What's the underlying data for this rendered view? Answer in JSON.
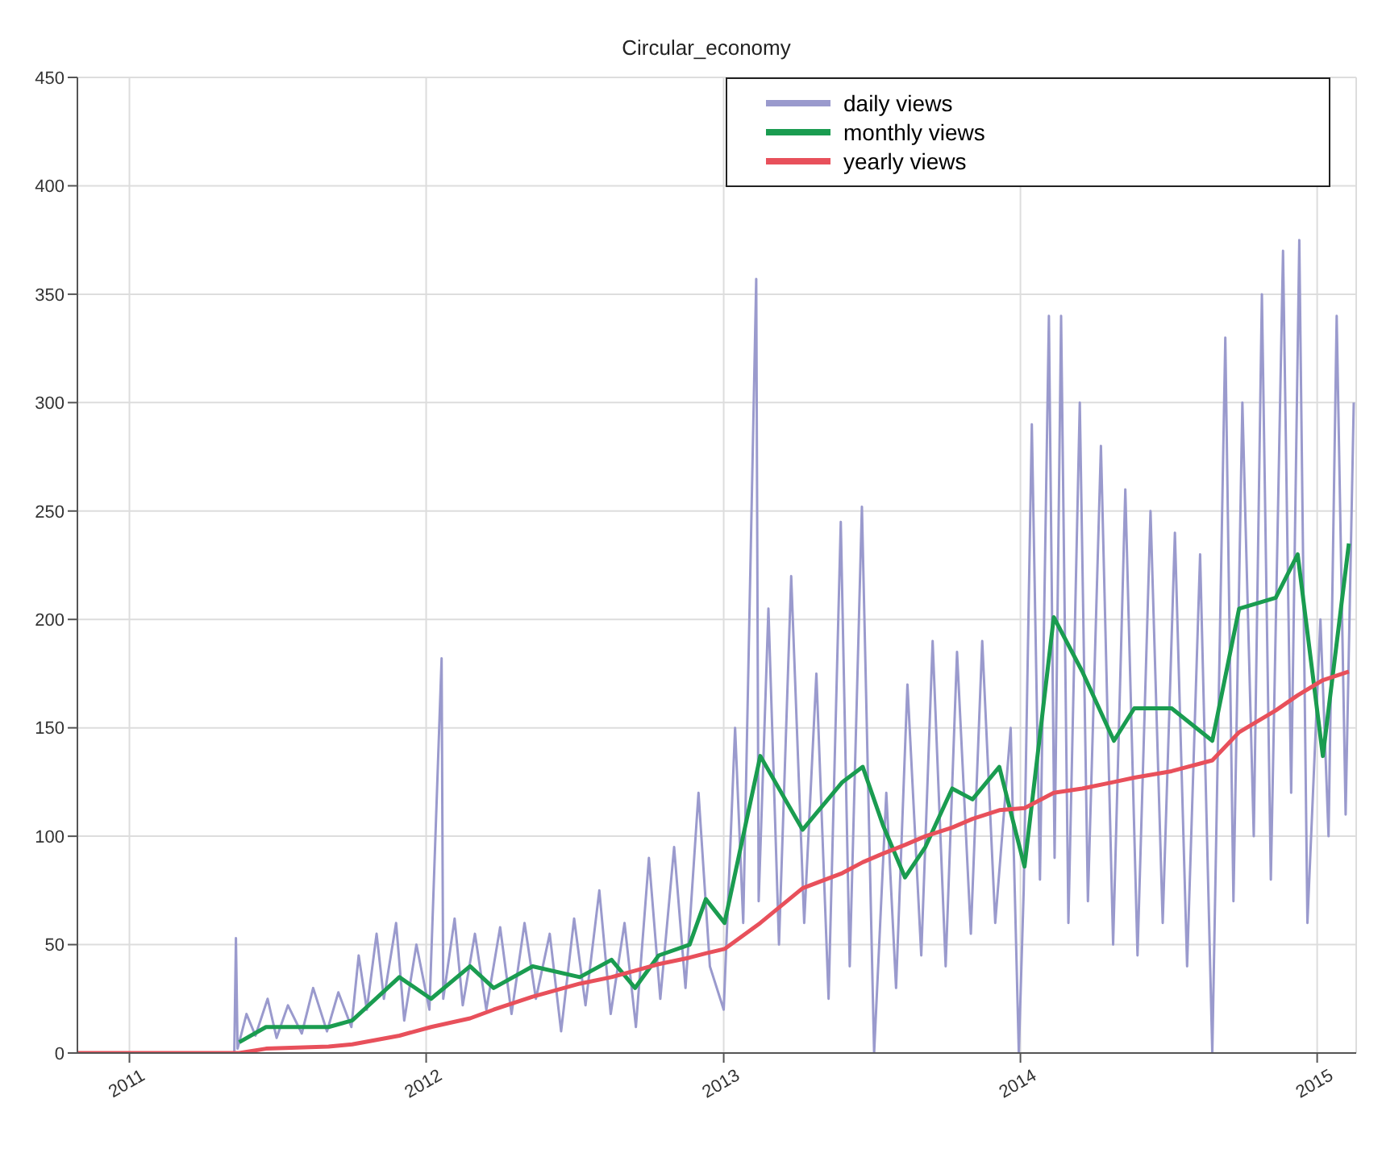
{
  "chart_data": {
    "type": "line",
    "title": "Circular_economy",
    "legend": "top right",
    "grid": true,
    "xlim": [
      "2010-10-29",
      "2015-02-18"
    ],
    "xticks": [
      {
        "value": "2011-01-01",
        "label": "2011"
      },
      {
        "value": "2012-01-01",
        "label": "2012"
      },
      {
        "value": "2013-01-01",
        "label": "2013"
      },
      {
        "value": "2014-01-01",
        "label": "2014"
      },
      {
        "value": "2015-01-01",
        "label": "2015"
      }
    ],
    "ylim": [
      0,
      450
    ],
    "yticks": [
      0,
      50,
      100,
      150,
      200,
      250,
      300,
      350,
      400,
      450
    ],
    "x": [
      "2010-10-29",
      "2011-05-16",
      "2011-06-18",
      "2011-09-03",
      "2011-10-02",
      "2011-11-29",
      "2012-01-07",
      "2012-02-24",
      "2012-03-24",
      "2012-05-11",
      "2012-07-08",
      "2012-08-16",
      "2012-09-14",
      "2012-10-13",
      "2012-11-20",
      "2012-12-10",
      "2013-01-02",
      "2013-02-15",
      "2013-04-08",
      "2013-05-27",
      "2013-06-21",
      "2013-07-16",
      "2013-08-12",
      "2013-09-06",
      "2013-10-09",
      "2013-11-03",
      "2013-12-06",
      "2014-01-06",
      "2014-02-11",
      "2014-03-18",
      "2014-04-26",
      "2014-05-21",
      "2014-07-06",
      "2014-08-25",
      "2014-09-27",
      "2014-11-11",
      "2014-12-08",
      "2015-01-08",
      "2015-02-09"
    ],
    "series": [
      {
        "name": "daily views",
        "color": "#9a9acd",
        "x": [
          "2010-10-29",
          "2011-05-10",
          "2011-05-12",
          "2011-05-14",
          "2011-05-25",
          "2011-06-05",
          "2011-06-20",
          "2011-07-01",
          "2011-07-15",
          "2011-08-01",
          "2011-08-15",
          "2011-09-01",
          "2011-09-15",
          "2011-10-01",
          "2011-10-10",
          "2011-10-20",
          "2011-11-01",
          "2011-11-10",
          "2011-11-25",
          "2011-12-05",
          "2011-12-20",
          "2012-01-05",
          "2012-01-20",
          "2012-01-22",
          "2012-02-05",
          "2012-02-15",
          "2012-03-01",
          "2012-03-15",
          "2012-04-01",
          "2012-04-15",
          "2012-05-01",
          "2012-05-15",
          "2012-06-01",
          "2012-06-15",
          "2012-07-01",
          "2012-07-15",
          "2012-08-01",
          "2012-08-15",
          "2012-09-01",
          "2012-09-15",
          "2012-10-01",
          "2012-10-15",
          "2012-11-01",
          "2012-11-15",
          "2012-12-01",
          "2012-12-15",
          "2013-01-01",
          "2013-01-15",
          "2013-01-25",
          "2013-02-10",
          "2013-02-13",
          "2013-02-25",
          "2013-03-10",
          "2013-03-25",
          "2013-04-10",
          "2013-04-25",
          "2013-05-10",
          "2013-05-25",
          "2013-06-05",
          "2013-06-20",
          "2013-07-05",
          "2013-07-20",
          "2013-08-01",
          "2013-08-15",
          "2013-09-01",
          "2013-09-15",
          "2013-10-01",
          "2013-10-15",
          "2013-11-01",
          "2013-11-15",
          "2013-12-01",
          "2013-12-20",
          "2013-12-30",
          "2014-01-05",
          "2014-01-15",
          "2014-01-25",
          "2014-02-05",
          "2014-02-12",
          "2014-02-20",
          "2014-03-01",
          "2014-03-15",
          "2014-03-25",
          "2014-04-10",
          "2014-04-25",
          "2014-05-10",
          "2014-05-25",
          "2014-06-10",
          "2014-06-25",
          "2014-07-10",
          "2014-07-25",
          "2014-08-10",
          "2014-08-25",
          "2014-09-10",
          "2014-09-20",
          "2014-10-01",
          "2014-10-15",
          "2014-10-25",
          "2014-11-05",
          "2014-11-20",
          "2014-11-30",
          "2014-12-10",
          "2014-12-20",
          "2015-01-05",
          "2015-01-15",
          "2015-01-25",
          "2015-02-05",
          "2015-02-15"
        ],
        "values": [
          0,
          0,
          53,
          2,
          18,
          8,
          25,
          7,
          22,
          9,
          30,
          10,
          28,
          12,
          45,
          20,
          55,
          25,
          60,
          15,
          50,
          20,
          182,
          25,
          62,
          22,
          55,
          20,
          58,
          18,
          60,
          25,
          55,
          10,
          62,
          22,
          75,
          18,
          60,
          12,
          90,
          25,
          95,
          30,
          120,
          40,
          20,
          150,
          60,
          357,
          70,
          205,
          50,
          220,
          60,
          175,
          25,
          245,
          40,
          252,
          0,
          120,
          30,
          170,
          45,
          190,
          40,
          185,
          55,
          190,
          60,
          150,
          0,
          75,
          290,
          80,
          340,
          90,
          340,
          60,
          300,
          70,
          280,
          50,
          260,
          45,
          250,
          60,
          240,
          40,
          230,
          0,
          330,
          70,
          300,
          100,
          350,
          80,
          370,
          120,
          375,
          60,
          200,
          100,
          340,
          110,
          300
        ]
      },
      {
        "name": "monthly views",
        "color": "#1a9c50",
        "values": [
          null,
          5,
          12,
          12,
          15,
          35,
          25,
          40,
          30,
          40,
          35,
          43,
          30,
          45,
          50,
          71,
          60,
          137,
          103,
          125,
          132,
          105,
          81,
          95,
          122,
          117,
          132,
          86,
          201,
          176,
          144,
          159,
          159,
          144,
          205,
          210,
          230,
          137,
          235
        ]
      },
      {
        "name": "yearly views",
        "color": "#e8505b",
        "values": [
          0,
          0,
          2,
          3,
          4,
          8,
          12,
          16,
          20,
          26,
          32,
          35,
          38,
          41,
          44,
          46,
          48,
          60,
          76,
          83,
          88,
          92,
          96,
          100,
          104,
          108,
          112,
          113,
          120,
          122,
          125,
          127,
          130,
          135,
          148,
          158,
          165,
          172,
          176
        ]
      }
    ]
  }
}
